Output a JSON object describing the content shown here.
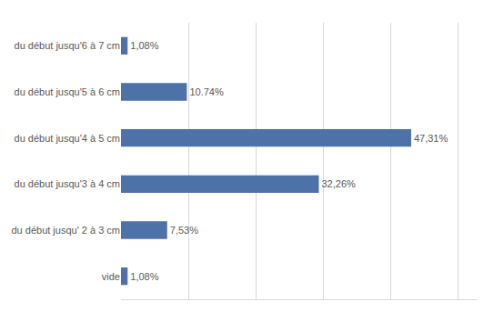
{
  "chart_data": {
    "type": "bar",
    "orientation": "horizontal",
    "categories": [
      "du début jusqu'6 à 7 cm",
      "du début jusqu'5 à 6 cm",
      "du début jusqu'4 à 5 cm",
      "du début jusqu'3 à 4 cm",
      "du début jusqu' 2 à 3 cm",
      "vide"
    ],
    "values": [
      1.08,
      10.74,
      47.31,
      32.26,
      7.53,
      1.08
    ],
    "value_labels": [
      "1,08%",
      "10.74%",
      "47,31%",
      "32,26%",
      "7,53%",
      "1,08%"
    ],
    "data_labels": true,
    "color": "#4d72a8",
    "xlim": [
      0,
      58
    ],
    "xticks": [
      0,
      11,
      22,
      33,
      44,
      55
    ],
    "grid": true,
    "tick_labels": "y"
  }
}
